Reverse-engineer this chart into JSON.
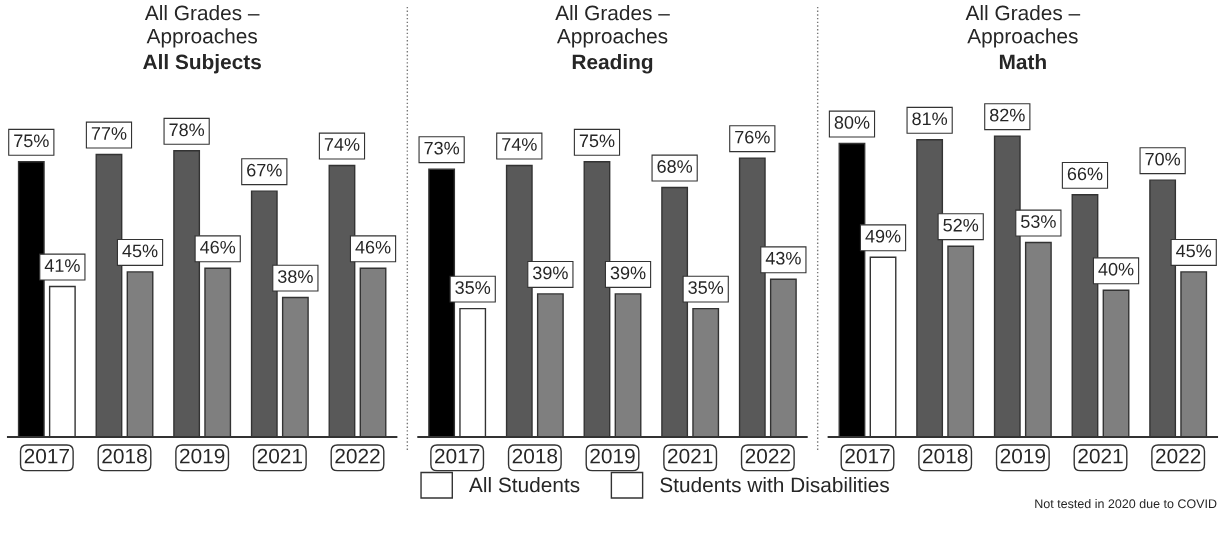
{
  "chart_data": [
    {
      "type": "bar",
      "title": "All Grades – Approaches",
      "subtitle": "All Subjects",
      "categories": [
        "2017",
        "2018",
        "2019",
        "2021",
        "2022"
      ],
      "legend": "bottom",
      "series": [
        {
          "name": "All Students",
          "colors": [
            "#000000",
            "#595959",
            "#595959",
            "#595959",
            "#595959"
          ],
          "values": [
            75,
            77,
            78,
            67,
            74
          ],
          "value_labels": [
            "75%",
            "77%",
            "78%",
            "67%",
            "74%"
          ]
        },
        {
          "name": "Students with Disabilities",
          "colors": [
            "#ffffff",
            "#7f7f7f",
            "#7f7f7f",
            "#7f7f7f",
            "#7f7f7f"
          ],
          "values": [
            41,
            45,
            46,
            38,
            46
          ],
          "value_labels": [
            "41%",
            "45%",
            "46%",
            "38%",
            "46%"
          ]
        }
      ]
    },
    {
      "type": "bar",
      "title": "All Grades – Approaches",
      "subtitle": "Reading",
      "categories": [
        "2017",
        "2018",
        "2019",
        "2021",
        "2022"
      ],
      "series": [
        {
          "colors": [
            "#000000",
            "#595959",
            "#595959",
            "#595959",
            "#595959"
          ],
          "values": [
            73,
            74,
            75,
            68,
            76
          ],
          "value_labels": [
            "73%",
            "74%",
            "75%",
            "68%",
            "76%"
          ]
        },
        {
          "colors": [
            "#ffffff",
            "#7f7f7f",
            "#7f7f7f",
            "#7f7f7f",
            "#7f7f7f"
          ],
          "values": [
            35,
            39,
            39,
            35,
            43
          ],
          "value_labels": [
            "35%",
            "39%",
            "39%",
            "35%",
            "43%"
          ]
        }
      ]
    },
    {
      "type": "bar",
      "title": "All Grades – Approaches",
      "subtitle": "Math",
      "categories": [
        "2017",
        "2018",
        "2019",
        "2021",
        "2022"
      ],
      "annotations": [
        "Not tested in 2020 due to COVID"
      ],
      "series": [
        {
          "colors": [
            "#000000",
            "#595959",
            "#595959",
            "#595959",
            "#595959"
          ],
          "values": [
            80,
            81,
            82,
            66,
            70
          ],
          "value_labels": [
            "80%",
            "81%",
            "82%",
            "66%",
            "70%"
          ]
        },
        {
          "colors": [
            "#ffffff",
            "#7f7f7f",
            "#7f7f7f",
            "#7f7f7f",
            "#7f7f7f"
          ],
          "values": [
            49,
            52,
            53,
            40,
            45
          ],
          "value_labels": [
            "49%",
            "52%",
            "53%",
            "40%",
            "45%"
          ]
        }
      ]
    }
  ]
}
